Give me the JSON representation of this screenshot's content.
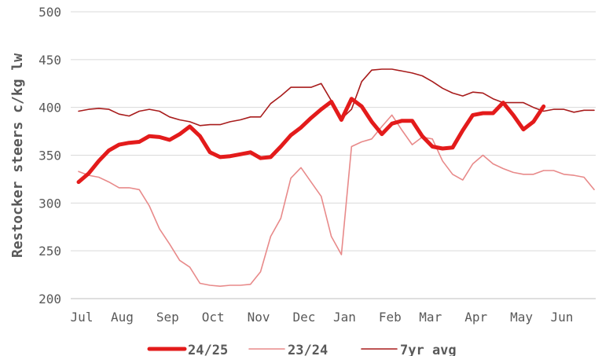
{
  "chart_data": {
    "type": "line",
    "ylabel": "Restocker steers c/kg lw",
    "ylim": [
      200,
      500
    ],
    "yticks": [
      200,
      250,
      300,
      350,
      400,
      450,
      500
    ],
    "grid": true,
    "legend_position": "bottom",
    "x_weeks": 52,
    "x_ticks": [
      {
        "label": "Jul",
        "week": 0
      },
      {
        "label": "Aug",
        "week": 4
      },
      {
        "label": "Sep",
        "week": 8.5
      },
      {
        "label": "Oct",
        "week": 13
      },
      {
        "label": "Nov",
        "week": 17.5
      },
      {
        "label": "Dec",
        "week": 22
      },
      {
        "label": "Jan",
        "week": 26
      },
      {
        "label": "Feb",
        "week": 30.5
      },
      {
        "label": "Mar",
        "week": 34.5
      },
      {
        "label": "Apr",
        "week": 39
      },
      {
        "label": "May",
        "week": 43.5
      },
      {
        "label": "Jun",
        "week": 47.5
      }
    ],
    "series": [
      {
        "name": "24/25",
        "color": "#e31b1b",
        "style": "thick",
        "values": [
          322,
          331,
          344,
          355,
          361,
          363,
          364,
          370,
          369,
          366,
          372,
          380,
          370,
          353,
          348,
          349,
          351,
          353,
          347,
          348,
          359,
          371,
          379,
          389,
          398,
          406,
          387,
          409,
          401,
          385,
          372,
          383,
          386,
          386,
          370,
          359,
          357,
          358,
          376,
          392,
          394,
          394,
          405,
          392,
          377,
          385,
          401
        ]
      },
      {
        "name": "23/24",
        "color": "#e88a8a",
        "style": "thin",
        "values": [
          333,
          329,
          327,
          322,
          316,
          316,
          314,
          297,
          273,
          257,
          240,
          233,
          216,
          214,
          213,
          214,
          214,
          215,
          228,
          265,
          284,
          326,
          337,
          322,
          307,
          265,
          246,
          359,
          364,
          367,
          380,
          392,
          376,
          361,
          369,
          367,
          344,
          330,
          324,
          341,
          350,
          341,
          336,
          332,
          330,
          330,
          334,
          334,
          330,
          329,
          327,
          314
        ]
      },
      {
        "name": "7yr avg",
        "color": "#a81c1c",
        "style": "medium",
        "values": [
          396,
          398,
          399,
          398,
          393,
          391,
          396,
          398,
          396,
          390,
          387,
          385,
          381,
          382,
          382,
          385,
          387,
          390,
          390,
          404,
          412,
          421,
          421,
          421,
          425,
          407,
          388,
          398,
          427,
          439,
          440,
          440,
          438,
          436,
          433,
          427,
          420,
          415,
          412,
          416,
          415,
          409,
          405,
          405,
          405,
          400,
          396,
          398,
          398,
          395,
          397,
          397
        ]
      }
    ]
  }
}
